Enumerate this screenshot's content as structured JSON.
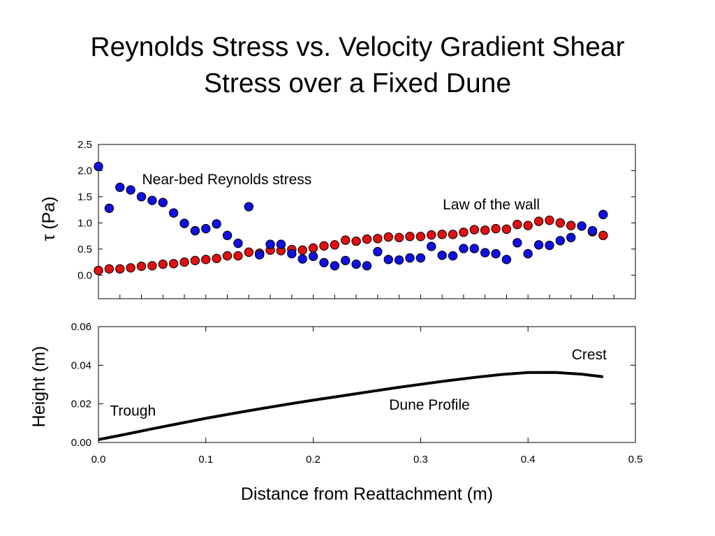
{
  "title": {
    "line1": "Reynolds Stress vs. Velocity Gradient Shear",
    "line2": "Stress over a Fixed Dune"
  },
  "chart_data": [
    {
      "type": "scatter",
      "ylabel": "τ (Pa)",
      "xlim": [
        0,
        0.5
      ],
      "ylim": [
        -0.45,
        2.5
      ],
      "y_ticks": [
        "0.0",
        "0.5",
        "1.0",
        "1.5",
        "2.0",
        "2.5"
      ],
      "grid": false,
      "series": [
        {
          "name": "Near-bed Reynolds stress",
          "color": "#1010e0",
          "x": [
            0.0,
            0.01,
            0.02,
            0.03,
            0.04,
            0.05,
            0.06,
            0.07,
            0.08,
            0.09,
            0.1,
            0.11,
            0.12,
            0.13,
            0.14,
            0.15,
            0.16,
            0.17,
            0.18,
            0.19,
            0.2,
            0.21,
            0.22,
            0.23,
            0.24,
            0.25,
            0.26,
            0.27,
            0.28,
            0.29,
            0.3,
            0.31,
            0.32,
            0.33,
            0.34,
            0.35,
            0.36,
            0.37,
            0.38,
            0.39,
            0.4,
            0.41,
            0.42,
            0.43,
            0.44,
            0.45,
            0.46,
            0.47
          ],
          "y": [
            2.08,
            1.28,
            1.68,
            1.63,
            1.5,
            1.43,
            1.39,
            1.19,
            0.99,
            0.85,
            0.89,
            0.98,
            0.76,
            0.61,
            1.31,
            0.39,
            0.59,
            0.59,
            0.41,
            0.31,
            0.36,
            0.24,
            0.18,
            0.28,
            0.21,
            0.18,
            0.45,
            0.3,
            0.29,
            0.33,
            0.33,
            0.55,
            0.38,
            0.37,
            0.51,
            0.51,
            0.43,
            0.41,
            0.3,
            0.62,
            0.41,
            0.58,
            0.57,
            0.66,
            0.72,
            0.94,
            0.85,
            1.16
          ]
        },
        {
          "name": "Law of the wall",
          "color": "#e01010",
          "x": [
            0.0,
            0.01,
            0.02,
            0.03,
            0.04,
            0.05,
            0.06,
            0.07,
            0.08,
            0.09,
            0.1,
            0.11,
            0.12,
            0.13,
            0.14,
            0.15,
            0.16,
            0.17,
            0.18,
            0.19,
            0.2,
            0.21,
            0.22,
            0.23,
            0.24,
            0.25,
            0.26,
            0.27,
            0.28,
            0.29,
            0.3,
            0.31,
            0.32,
            0.33,
            0.34,
            0.35,
            0.36,
            0.37,
            0.38,
            0.39,
            0.4,
            0.41,
            0.42,
            0.43,
            0.44,
            0.46,
            0.47
          ],
          "y": [
            0.09,
            0.12,
            0.12,
            0.14,
            0.17,
            0.18,
            0.21,
            0.22,
            0.25,
            0.28,
            0.3,
            0.32,
            0.37,
            0.37,
            0.44,
            0.42,
            0.48,
            0.47,
            0.49,
            0.48,
            0.52,
            0.56,
            0.58,
            0.67,
            0.65,
            0.69,
            0.7,
            0.73,
            0.72,
            0.74,
            0.74,
            0.77,
            0.78,
            0.78,
            0.82,
            0.87,
            0.86,
            0.89,
            0.88,
            0.97,
            0.95,
            1.03,
            1.05,
            1.0,
            0.95,
            0.83,
            0.76
          ]
        }
      ],
      "annotations": [
        {
          "text": "Near-bed Reynolds stress",
          "x": 0.04,
          "y": 1.83
        },
        {
          "text": "Law of the wall",
          "x": 0.32,
          "y": 1.35
        }
      ]
    },
    {
      "type": "line",
      "ylabel": "Height (m)",
      "xlabel": "Distance from Reattachment (m)",
      "xlim": [
        0,
        0.5
      ],
      "ylim": [
        0,
        0.06
      ],
      "x_ticks": [
        "0.0",
        "0.1",
        "0.2",
        "0.3",
        "0.4",
        "0.5"
      ],
      "y_ticks": [
        "0.00",
        "0.02",
        "0.04",
        "0.06"
      ],
      "grid": false,
      "series": [
        {
          "color": "#000000",
          "x": [
            0.0,
            0.025,
            0.05,
            0.075,
            0.1,
            0.125,
            0.15,
            0.175,
            0.2,
            0.225,
            0.25,
            0.275,
            0.3,
            0.325,
            0.35,
            0.375,
            0.4,
            0.425,
            0.45,
            0.47
          ],
          "y": [
            0.0015,
            0.0042,
            0.0071,
            0.0098,
            0.0125,
            0.015,
            0.0174,
            0.0197,
            0.0219,
            0.024,
            0.0261,
            0.0282,
            0.0301,
            0.032,
            0.0337,
            0.0352,
            0.0362,
            0.0363,
            0.0354,
            0.034
          ]
        }
      ],
      "annotations": [
        {
          "text": "Crest",
          "x": 0.44,
          "y": 0.0455
        },
        {
          "text": "Trough",
          "x": 0.01,
          "y": 0.0165
        },
        {
          "text": "Dune Profile",
          "x": 0.27,
          "y": 0.0195
        }
      ]
    }
  ]
}
